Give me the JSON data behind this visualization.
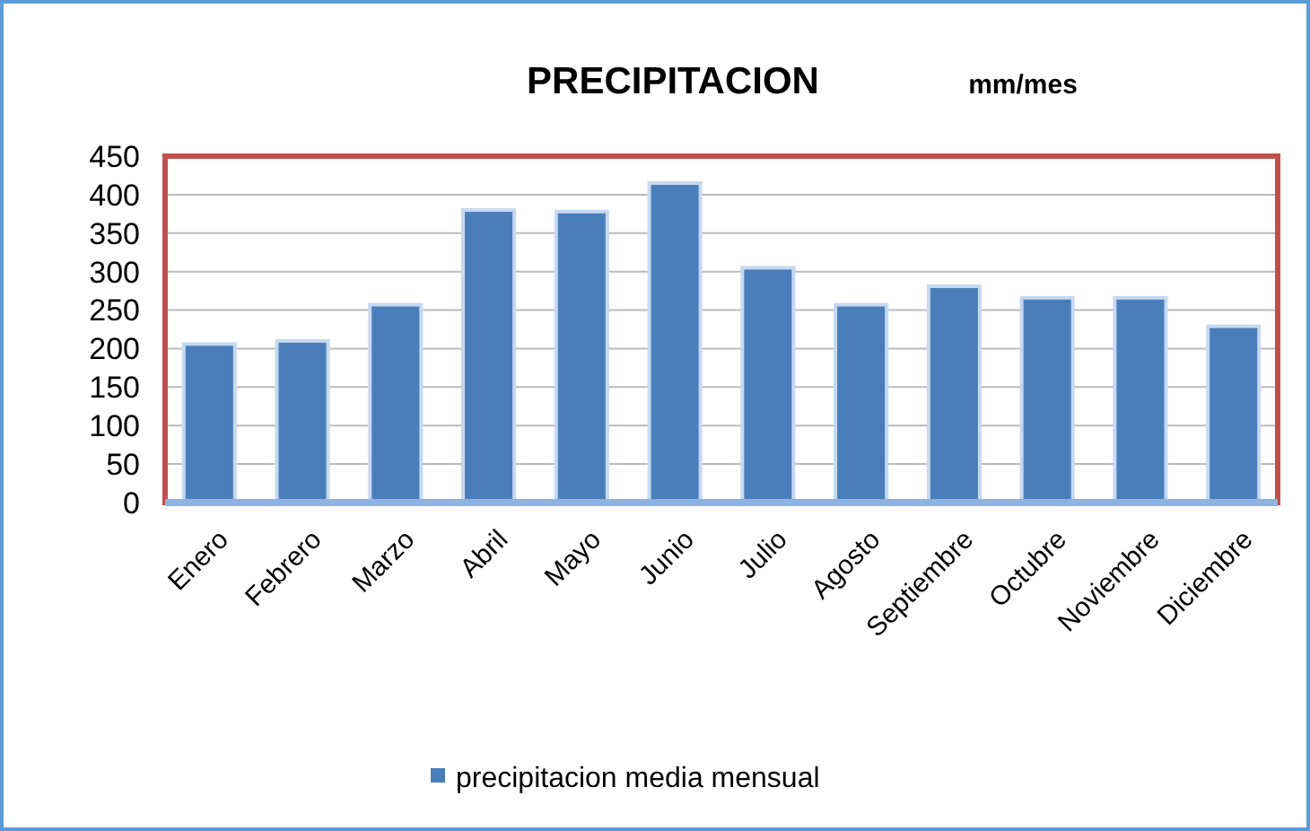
{
  "chart_data": {
    "type": "bar",
    "title": "PRECIPITACION",
    "subtitle": "mm/mes",
    "categories": [
      "Enero",
      "Febrero",
      "Marzo",
      "Abril",
      "Mayo",
      "Junio",
      "Julio",
      "Agosto",
      "Septiembre",
      "Octubre",
      "Noviembre",
      "Diciembre"
    ],
    "series": [
      {
        "name": "precipitacion media mensual",
        "color": "#4a7ebb",
        "values": [
          206,
          210,
          257,
          380,
          378,
          415,
          305,
          257,
          281,
          266,
          266,
          229
        ]
      }
    ],
    "ylim": [
      0,
      450
    ],
    "yticks": [
      0,
      50,
      100,
      150,
      200,
      250,
      300,
      350,
      400,
      450
    ],
    "grid": "y",
    "legend": "bottom"
  }
}
